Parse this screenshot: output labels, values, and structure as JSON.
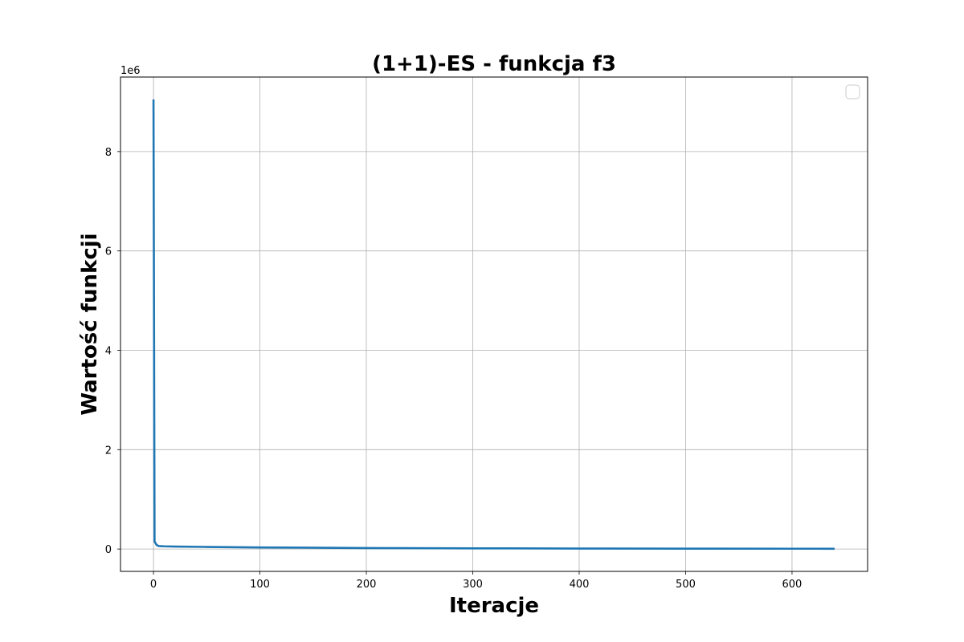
{
  "chart_data": {
    "type": "line",
    "title": "(1+1)-ES - funkcja f3",
    "xlabel": "Iteracje",
    "ylabel": "Wartość funkcji",
    "y_offset_label": "1e6",
    "xlim": [
      -31,
      671
    ],
    "ylim": [
      -450000,
      9500000
    ],
    "xticks": [
      0,
      100,
      200,
      300,
      400,
      500,
      600
    ],
    "xtick_labels": [
      "0",
      "100",
      "200",
      "300",
      "400",
      "500",
      "600"
    ],
    "yticks": [
      0,
      2000000,
      4000000,
      6000000,
      8000000
    ],
    "ytick_labels": [
      "0",
      "2",
      "4",
      "6",
      "8"
    ],
    "grid": true,
    "legend": "top-right (empty)",
    "series": [
      {
        "color": "#1f77b4",
        "x": [
          0,
          1,
          3,
          5,
          10,
          20,
          50,
          100,
          200,
          300,
          400,
          500,
          600,
          640
        ],
        "y": [
          9050000,
          150000,
          80000,
          60000,
          55000,
          50000,
          42000,
          32000,
          20000,
          14000,
          10000,
          8000,
          6500,
          6000
        ]
      }
    ]
  }
}
